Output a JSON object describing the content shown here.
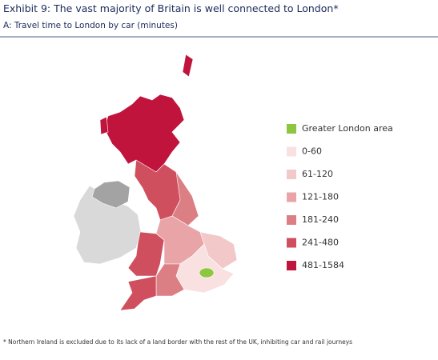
{
  "header": {
    "title": "Exhibit 9: The vast majority of Britain is well connected to London*",
    "subtitle": "A: Travel time to London by car (minutes)"
  },
  "legend": [
    {
      "label": "Greater London area",
      "color": "#8dc63f"
    },
    {
      "label": "0-60",
      "color": "#f9e1e1"
    },
    {
      "label": "61-120",
      "color": "#f2c8c9"
    },
    {
      "label": "121-180",
      "color": "#e9a4a7"
    },
    {
      "label": "181-240",
      "color": "#dc7f85"
    },
    {
      "label": "241-480",
      "color": "#cf4f5e"
    },
    {
      "label": "481-1584",
      "color": "#c0143c"
    }
  ],
  "footnote": "* Northern Ireland is excluded due to its lack of a land border with the rest of the UK, inhibiting car and rail journeys"
}
